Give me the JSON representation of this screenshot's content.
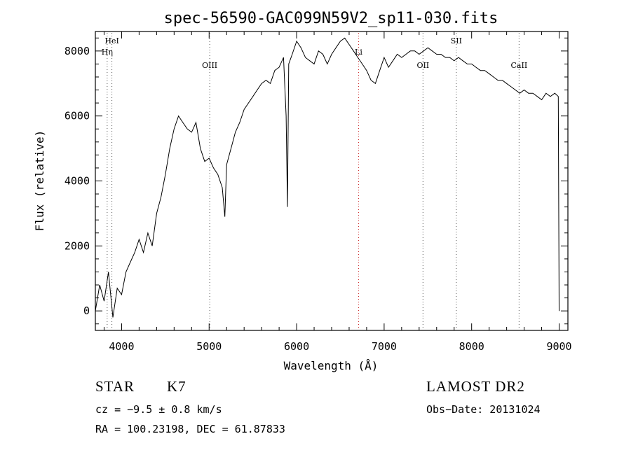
{
  "chart_data": {
    "type": "line",
    "title": "spec-56590-GAC099N59V2_sp11-030.fits",
    "xlabel": "Wavelength (Å)",
    "ylabel": "Flux (relative)",
    "xlim": [
      3700,
      9100
    ],
    "ylim": [
      -600,
      8600
    ],
    "xticks": [
      4000,
      5000,
      6000,
      7000,
      8000,
      9000
    ],
    "xtick_labels": [
      "4000",
      "5000",
      "6000",
      "7000",
      "8000",
      "9000"
    ],
    "yticks": [
      0,
      2000,
      4000,
      6000,
      8000
    ],
    "ytick_labels": [
      "0",
      "2000",
      "4000",
      "6000",
      "8000"
    ],
    "series": [
      {
        "name": "flux",
        "x": [
          3700,
          3750,
          3800,
          3850,
          3900,
          3950,
          4000,
          4050,
          4100,
          4150,
          4200,
          4250,
          4300,
          4350,
          4400,
          4450,
          4500,
          4550,
          4600,
          4650,
          4700,
          4750,
          4800,
          4850,
          4900,
          4950,
          5000,
          5050,
          5100,
          5150,
          5180,
          5200,
          5250,
          5300,
          5350,
          5400,
          5450,
          5500,
          5550,
          5600,
          5650,
          5700,
          5750,
          5800,
          5850,
          5880,
          5895,
          5910,
          5950,
          6000,
          6050,
          6100,
          6150,
          6200,
          6250,
          6300,
          6350,
          6400,
          6450,
          6500,
          6550,
          6600,
          6650,
          6700,
          6750,
          6800,
          6850,
          6900,
          6950,
          7000,
          7050,
          7100,
          7150,
          7200,
          7250,
          7300,
          7350,
          7400,
          7450,
          7500,
          7550,
          7600,
          7650,
          7700,
          7750,
          7800,
          7850,
          7900,
          7950,
          8000,
          8050,
          8100,
          8150,
          8200,
          8250,
          8300,
          8350,
          8400,
          8450,
          8500,
          8550,
          8600,
          8650,
          8700,
          8750,
          8800,
          8850,
          8900,
          8950,
          8990,
          9000
        ],
        "y": [
          0,
          800,
          300,
          1200,
          -200,
          700,
          500,
          1200,
          1500,
          1800,
          2200,
          1800,
          2400,
          2000,
          3000,
          3500,
          4200,
          5000,
          5600,
          6000,
          5800,
          5600,
          5500,
          5800,
          5000,
          4600,
          4700,
          4400,
          4200,
          3800,
          2900,
          4500,
          5000,
          5500,
          5800,
          6200,
          6400,
          6600,
          6800,
          7000,
          7100,
          7000,
          7400,
          7500,
          7800,
          6000,
          3200,
          7600,
          7900,
          8300,
          8100,
          7800,
          7700,
          7600,
          8000,
          7900,
          7600,
          7900,
          8100,
          8300,
          8400,
          8200,
          8000,
          7800,
          7600,
          7400,
          7100,
          7000,
          7400,
          7800,
          7500,
          7700,
          7900,
          7800,
          7900,
          8000,
          8000,
          7900,
          8000,
          8100,
          8000,
          7900,
          7900,
          7800,
          7800,
          7700,
          7800,
          7700,
          7600,
          7600,
          7500,
          7400,
          7400,
          7300,
          7200,
          7100,
          7100,
          7000,
          6900,
          6800,
          6700,
          6800,
          6700,
          6700,
          6600,
          6500,
          6700,
          6600,
          6700,
          6600,
          0
        ]
      }
    ],
    "line_markers": [
      {
        "label": "Hη",
        "x": 3835,
        "color": "#555555"
      },
      {
        "label": "HeI",
        "x": 3889,
        "color": "#555555"
      },
      {
        "label": "OIII",
        "x": 5007,
        "color": "#555555"
      },
      {
        "label": "Li",
        "x": 6708,
        "color": "#cc2222"
      },
      {
        "label": "OII",
        "x": 7444,
        "color": "#555555"
      },
      {
        "label": "SII",
        "x": 7825,
        "color": "#555555"
      },
      {
        "label": "CaII",
        "x": 8542,
        "color": "#555555"
      }
    ],
    "line_color": "#000000"
  },
  "info": {
    "object_class": "STAR",
    "subclass": "K7",
    "survey": "LAMOST DR2",
    "cz": "cz = −9.5 ± 0.8 km/s",
    "obs_date": "Obs−Date: 20131024",
    "coords": "RA = 100.23198, DEC =  61.87833"
  }
}
